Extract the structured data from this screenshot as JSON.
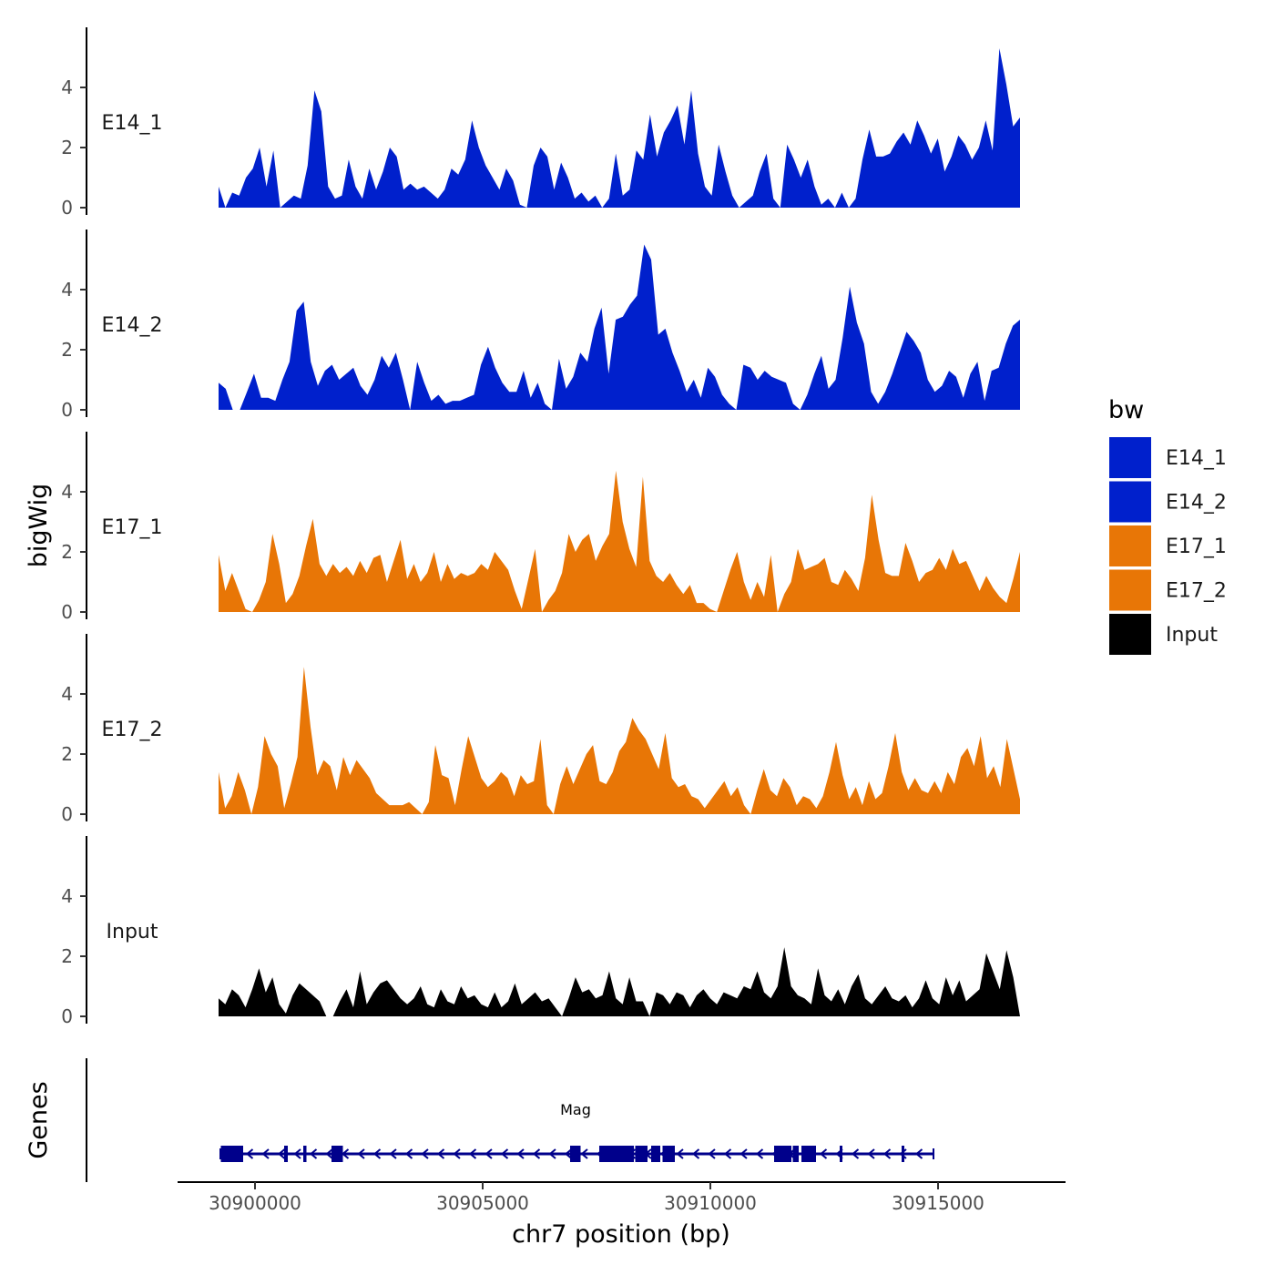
{
  "chart_data": {
    "type": "area",
    "title": "",
    "xlabel": "chr7 position (bp)",
    "ylabel": "bigWig",
    "genes_label": "Genes",
    "xlim": [
      30898300,
      30917800
    ],
    "x_ticks": [
      30900000,
      30905000,
      30910000,
      30915000
    ],
    "x_tick_labels": [
      "30900000",
      "30905000",
      "30910000",
      "30915000"
    ],
    "ylim": [
      0,
      6
    ],
    "y_ticks": [
      0,
      2,
      4
    ],
    "y_tick_labels": [
      "0",
      "2",
      "4"
    ],
    "x_start": 30899200,
    "x_end": 30916800,
    "legend": {
      "title": "bw",
      "position": "right",
      "entries": [
        {
          "label": "E14_1",
          "color": "#0020cc"
        },
        {
          "label": "E14_2",
          "color": "#0020cc"
        },
        {
          "label": "E17_1",
          "color": "#e87606"
        },
        {
          "label": "E17_2",
          "color": "#e87606"
        },
        {
          "label": "Input",
          "color": "#000000"
        }
      ]
    },
    "series": [
      {
        "name": "E14_1",
        "color": "#0020cc",
        "values": [
          0.7,
          0.0,
          0.5,
          0.4,
          1.0,
          1.3,
          2.0,
          0.7,
          1.9,
          0.0,
          0.2,
          0.4,
          0.3,
          1.4,
          3.9,
          3.2,
          0.7,
          0.3,
          0.4,
          1.6,
          0.7,
          0.3,
          1.3,
          0.6,
          1.2,
          2.0,
          1.7,
          0.6,
          0.8,
          0.6,
          0.7,
          0.5,
          0.3,
          0.6,
          1.3,
          1.1,
          1.6,
          2.9,
          2.0,
          1.4,
          1.0,
          0.6,
          1.3,
          0.9,
          0.1,
          0.0,
          1.4,
          2.0,
          1.7,
          0.6,
          1.5,
          1.0,
          0.3,
          0.5,
          0.2,
          0.4,
          0.0,
          0.3,
          1.8,
          0.4,
          0.6,
          1.9,
          1.6,
          3.1,
          1.7,
          2.5,
          2.9,
          3.4,
          2.1,
          3.9,
          1.8,
          0.7,
          0.4,
          2.1,
          1.2,
          0.4,
          0.0,
          0.2,
          0.4,
          1.2,
          1.8,
          0.3,
          0.0,
          2.1,
          1.6,
          1.0,
          1.6,
          0.7,
          0.1,
          0.3,
          0.0,
          0.5,
          0.0,
          0.3,
          1.6,
          2.6,
          1.7,
          1.7,
          1.8,
          2.2,
          2.5,
          2.1,
          2.9,
          2.4,
          1.8,
          2.3,
          1.2,
          1.7,
          2.4,
          2.1,
          1.6,
          2.0,
          2.9,
          1.9,
          5.3,
          4.1,
          2.7,
          3.0
        ]
      },
      {
        "name": "E14_2",
        "color": "#0020cc",
        "values": [
          0.9,
          0.7,
          0.0,
          0.0,
          0.6,
          1.2,
          0.4,
          0.4,
          0.3,
          1.0,
          1.6,
          3.3,
          3.6,
          1.6,
          0.8,
          1.3,
          1.5,
          1.0,
          1.2,
          1.4,
          0.8,
          0.5,
          1.0,
          1.8,
          1.4,
          1.9,
          1.0,
          0.0,
          1.6,
          0.9,
          0.3,
          0.5,
          0.2,
          0.3,
          0.3,
          0.4,
          0.5,
          1.5,
          2.1,
          1.4,
          0.9,
          0.6,
          0.6,
          1.3,
          0.4,
          0.9,
          0.2,
          0.0,
          1.7,
          0.7,
          1.1,
          1.9,
          1.6,
          2.7,
          3.4,
          1.2,
          3.0,
          3.1,
          3.5,
          3.8,
          5.5,
          5.0,
          2.5,
          2.7,
          1.9,
          1.3,
          0.6,
          1.0,
          0.4,
          1.4,
          1.1,
          0.5,
          0.2,
          0.0,
          1.5,
          1.4,
          1.0,
          1.3,
          1.1,
          1.0,
          0.9,
          0.2,
          0.0,
          0.5,
          1.2,
          1.8,
          0.7,
          1.0,
          2.4,
          4.1,
          2.9,
          2.2,
          0.6,
          0.2,
          0.6,
          1.2,
          1.9,
          2.6,
          2.3,
          1.9,
          1.0,
          0.6,
          0.8,
          1.3,
          1.1,
          0.4,
          1.2,
          1.6,
          0.3,
          1.3,
          1.4,
          2.2,
          2.8,
          3.0
        ]
      },
      {
        "name": "E17_1",
        "color": "#e87606",
        "values": [
          1.9,
          0.7,
          1.3,
          0.7,
          0.1,
          0.0,
          0.4,
          1.0,
          2.6,
          1.6,
          0.3,
          0.6,
          1.2,
          2.2,
          3.1,
          1.6,
          1.2,
          1.6,
          1.3,
          1.5,
          1.2,
          1.7,
          1.3,
          1.8,
          1.9,
          1.0,
          1.7,
          2.4,
          1.1,
          1.6,
          1.0,
          1.3,
          2.0,
          1.0,
          1.6,
          1.1,
          1.3,
          1.2,
          1.3,
          1.6,
          1.4,
          2.0,
          1.7,
          1.4,
          0.7,
          0.1,
          1.1,
          2.1,
          0.0,
          0.4,
          0.7,
          1.3,
          2.6,
          2.0,
          2.4,
          2.6,
          1.7,
          2.2,
          2.6,
          4.7,
          3.0,
          2.1,
          1.5,
          4.5,
          1.7,
          1.2,
          1.0,
          1.3,
          0.9,
          0.6,
          0.9,
          0.3,
          0.3,
          0.1,
          0.0,
          0.7,
          1.4,
          2.0,
          1.0,
          0.4,
          1.0,
          0.5,
          1.9,
          0.0,
          0.6,
          1.0,
          2.1,
          1.4,
          1.5,
          1.6,
          1.8,
          1.0,
          0.9,
          1.4,
          1.1,
          0.7,
          1.8,
          3.9,
          2.4,
          1.3,
          1.2,
          1.2,
          2.3,
          1.7,
          1.0,
          1.3,
          1.4,
          1.8,
          1.4,
          2.1,
          1.6,
          1.7,
          1.2,
          0.7,
          1.2,
          0.8,
          0.5,
          0.3,
          1.1,
          2.0
        ]
      },
      {
        "name": "E17_2",
        "color": "#e87606",
        "values": [
          1.4,
          0.2,
          0.6,
          1.4,
          0.8,
          0.0,
          0.9,
          2.6,
          2.0,
          1.6,
          0.2,
          1.0,
          1.9,
          4.9,
          2.9,
          1.3,
          1.8,
          1.6,
          0.8,
          1.9,
          1.3,
          1.8,
          1.5,
          1.2,
          0.7,
          0.5,
          0.3,
          0.3,
          0.3,
          0.4,
          0.2,
          0.0,
          0.4,
          2.3,
          1.3,
          1.2,
          0.3,
          1.5,
          2.6,
          1.9,
          1.2,
          0.9,
          1.1,
          1.4,
          1.2,
          0.6,
          1.3,
          1.0,
          1.1,
          2.5,
          0.3,
          0.0,
          1.0,
          1.6,
          1.0,
          1.5,
          2.0,
          2.3,
          1.1,
          1.0,
          1.4,
          2.1,
          2.4,
          3.2,
          2.8,
          2.5,
          2.0,
          1.5,
          2.7,
          1.2,
          0.9,
          1.0,
          0.6,
          0.5,
          0.2,
          0.5,
          0.8,
          1.1,
          0.6,
          0.9,
          0.3,
          0.0,
          0.8,
          1.5,
          0.8,
          0.6,
          1.2,
          0.9,
          0.3,
          0.6,
          0.5,
          0.2,
          0.6,
          1.4,
          2.4,
          1.3,
          0.5,
          0.9,
          0.3,
          1.1,
          0.5,
          0.7,
          1.6,
          2.7,
          1.4,
          0.8,
          1.2,
          0.8,
          0.7,
          1.1,
          0.7,
          1.4,
          1.0,
          1.9,
          2.2,
          1.6,
          2.6,
          1.2,
          1.6,
          0.9,
          2.5,
          1.5,
          0.5
        ]
      },
      {
        "name": "Input",
        "color": "#000000",
        "values": [
          0.6,
          0.4,
          0.9,
          0.7,
          0.3,
          0.9,
          1.6,
          0.8,
          1.3,
          0.4,
          0.1,
          0.7,
          1.1,
          0.9,
          0.7,
          0.5,
          0.0,
          0.0,
          0.5,
          0.9,
          0.3,
          1.5,
          0.4,
          0.8,
          1.1,
          1.2,
          0.9,
          0.6,
          0.4,
          0.6,
          1.0,
          0.4,
          0.3,
          0.9,
          0.5,
          0.4,
          1.0,
          0.6,
          0.7,
          0.4,
          0.3,
          0.8,
          0.3,
          0.5,
          1.1,
          0.4,
          0.6,
          0.8,
          0.5,
          0.6,
          0.3,
          0.0,
          0.6,
          1.3,
          0.8,
          0.9,
          0.6,
          0.7,
          1.5,
          0.6,
          0.4,
          1.3,
          0.5,
          0.5,
          0.0,
          0.8,
          0.7,
          0.4,
          0.8,
          0.7,
          0.3,
          0.7,
          0.9,
          0.6,
          0.4,
          0.8,
          0.7,
          0.6,
          1.0,
          0.9,
          1.5,
          0.8,
          0.6,
          1.0,
          2.3,
          1.0,
          0.7,
          0.6,
          0.4,
          1.6,
          0.7,
          0.5,
          0.9,
          0.4,
          1.0,
          1.4,
          0.6,
          0.4,
          0.7,
          1.0,
          0.6,
          0.5,
          0.7,
          0.3,
          0.6,
          1.2,
          0.6,
          0.4,
          1.3,
          0.7,
          1.2,
          0.5,
          0.7,
          0.9,
          2.1,
          1.5,
          0.9,
          2.2,
          1.3,
          0.0
        ]
      }
    ],
    "gene": {
      "name": "Mag",
      "start": 30899240,
      "end": 30914900,
      "strand": "-",
      "color": "#00008b",
      "exons": [
        {
          "start": 30899250,
          "end": 30899740
        },
        {
          "start": 30900640,
          "end": 30900720
        },
        {
          "start": 30901060,
          "end": 30901130
        },
        {
          "start": 30901680,
          "end": 30901930
        },
        {
          "start": 30906920,
          "end": 30907150
        },
        {
          "start": 30907560,
          "end": 30908320
        },
        {
          "start": 30908350,
          "end": 30908620
        },
        {
          "start": 30908700,
          "end": 30908900
        },
        {
          "start": 30908950,
          "end": 30909220
        },
        {
          "start": 30911400,
          "end": 30911780
        },
        {
          "start": 30911810,
          "end": 30911940
        },
        {
          "start": 30912000,
          "end": 30912320
        },
        {
          "start": 30912840,
          "end": 30912900
        },
        {
          "start": 30914200,
          "end": 30914240
        }
      ]
    }
  }
}
